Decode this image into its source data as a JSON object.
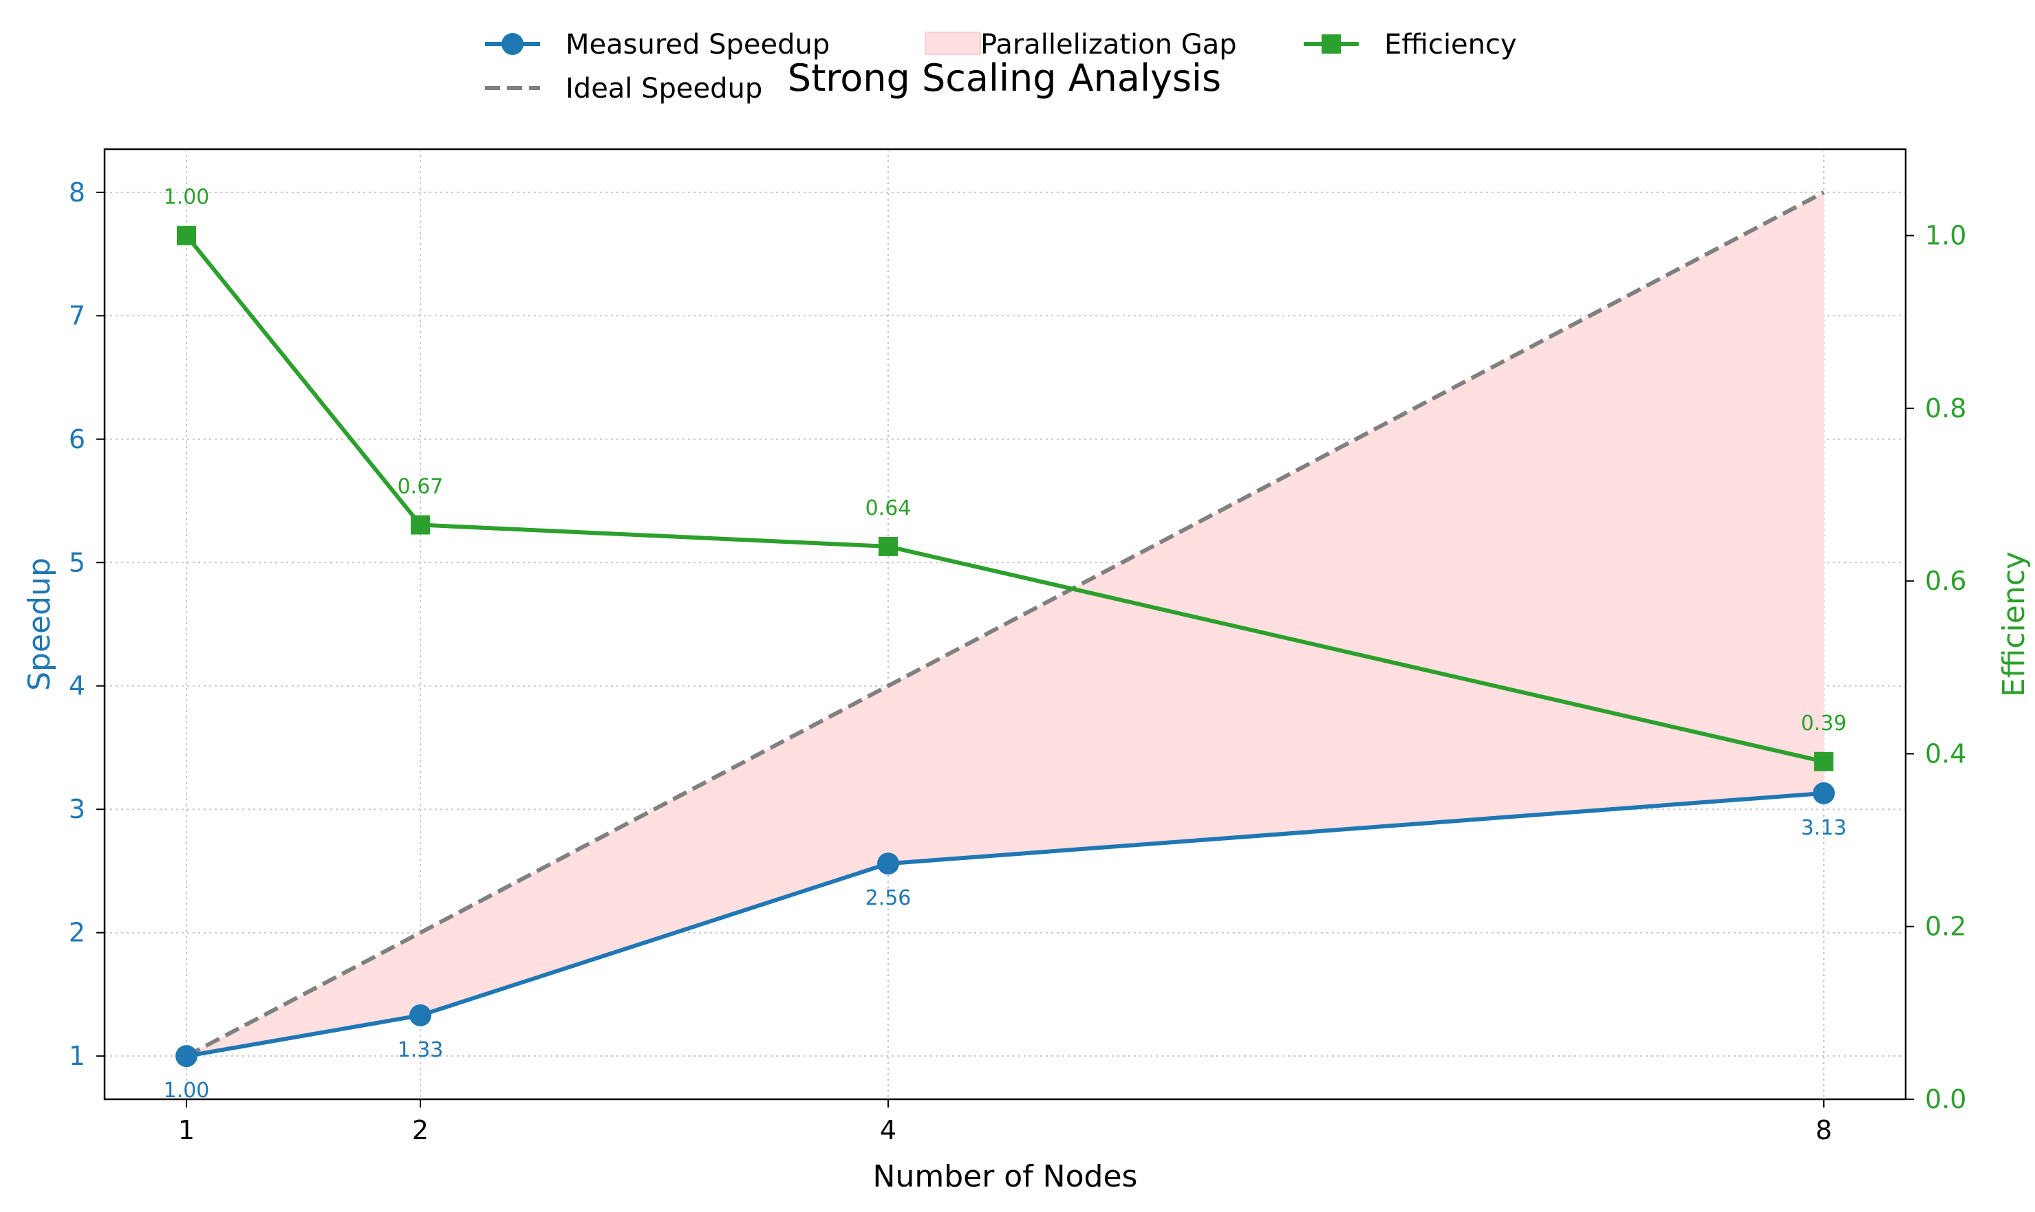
{
  "chart_data": {
    "type": "line",
    "title": "Strong Scaling Analysis",
    "xlabel": "Number of Nodes",
    "ylabel_left": "Speedup",
    "ylabel_right": "Efficiency",
    "x": [
      1,
      2,
      4,
      8
    ],
    "x_tick_labels": [
      "1",
      "2",
      "4",
      "8"
    ],
    "xlim": [
      0.65,
      8.35
    ],
    "ylim_left": [
      0.65,
      8.35
    ],
    "ylim_right": [
      0.0,
      1.1
    ],
    "y_ticks_left": [
      "1",
      "2",
      "3",
      "4",
      "5",
      "6",
      "7",
      "8"
    ],
    "y_ticks_right": [
      "0.0",
      "0.2",
      "0.4",
      "0.6",
      "0.8",
      "1.0"
    ],
    "grid": true,
    "legend_placement": "top-center",
    "series": [
      {
        "name": "Measured Speedup",
        "axis": "left",
        "marker": "circle",
        "color": "#1f77b4",
        "values": [
          1.0,
          1.33,
          2.56,
          3.13
        ],
        "labels": [
          "1.00",
          "1.33",
          "2.56",
          "3.13"
        ]
      },
      {
        "name": "Ideal Speedup",
        "axis": "left",
        "style": "dashed",
        "color": "#808080",
        "values": [
          1,
          2,
          4,
          8
        ]
      },
      {
        "name": "Parallelization Gap",
        "axis": "left",
        "style": "fill-between",
        "color": "#ffdfe0",
        "lower": "Measured Speedup",
        "upper": "Ideal Speedup"
      },
      {
        "name": "Efficiency",
        "axis": "right",
        "marker": "square",
        "color": "#2ca02c",
        "values": [
          1.0,
          0.665,
          0.64,
          0.391
        ],
        "labels": [
          "1.00",
          "0.67",
          "0.64",
          "0.39"
        ]
      }
    ]
  }
}
